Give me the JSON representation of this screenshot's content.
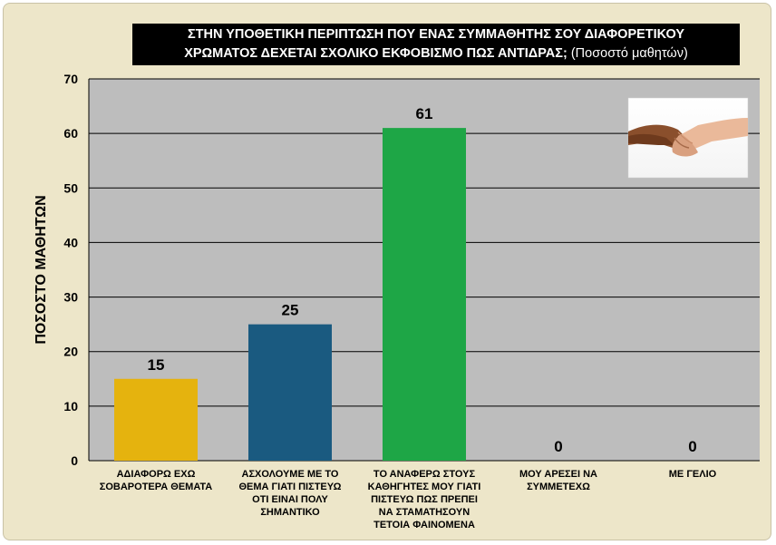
{
  "chart_data": {
    "type": "bar",
    "title": "ΣΤΗΝ ΥΠΟΘΕΤΙΚΗ ΠΕΡΙΠΤΩΣΗ ΠΟΥ ΕΝΑΣ ΣΥΜΜΑΘΗΤΗΣ ΣΟΥ ΔΙΑΦΟΡΕΤΙΚΟΥ",
    "title_line2": "ΧΡΩΜΑΤΟΣ ΔΕΧΕΤΑΙ ΣΧΟΛΙΚΟ ΕΚΦΟΒΙΣΜΟ ΠΩΣ ΑΝΤΙΔΡΑΣ;",
    "subtitle": "(Ποσοστό μαθητών)",
    "ylabel": "ΠΟΣΟΣΤΟ ΜΑΘΗΤΩΝ",
    "xlabel": "",
    "ylim": [
      0,
      70
    ],
    "yticks": [
      0,
      10,
      20,
      30,
      40,
      50,
      60,
      70
    ],
    "grid": true,
    "categories": [
      [
        "ΑΔΙΑΦΟΡΩ ΕΧΩ",
        "ΣΟΒΑΡΟΤΕΡΑ ΘΕΜΑΤΑ"
      ],
      [
        "ΑΣΧΟΛΟΥΜΕ ΜΕ ΤΟ",
        "ΘΕΜΑ ΓΙΑΤΙ ΠΙΣΤΕΥΩ",
        "ΟΤΙ ΕΙΝΑΙ ΠΟΛΥ",
        "ΣΗΜΑΝΤΙΚΟ"
      ],
      [
        "ΤΟ ΑΝΑΦΕΡΩ ΣΤΟΥΣ",
        "ΚΑΘΗΓΗΤΕΣ ΜΟΥ ΓΙΑΤΙ",
        "ΠΙΣΤΕΥΩ ΠΩΣ ΠΡΕΠΕΙ",
        "ΝΑ ΣΤΑΜΑΤΗΣΟΥΝ",
        "ΤΕΤΟΙΑ ΦΑΙΝΟΜΕΝΑ"
      ],
      [
        "ΜΟΥ ΑΡΕΣΕΙ ΝΑ",
        "ΣΥΜΜΕΤΕΧΩ"
      ],
      [
        "ΜΕ ΓΕΛΙΟ"
      ]
    ],
    "values": [
      15,
      25,
      61,
      0,
      0
    ],
    "value_labels": [
      "15",
      "25",
      "61",
      "0",
      "0"
    ],
    "colors": [
      "#e5b30e",
      "#1a5a80",
      "#1ea646",
      "#1ea646",
      "#1ea646"
    ],
    "plot_background": "#bdbdbd"
  },
  "image": {
    "icon": "handshake-photo"
  }
}
